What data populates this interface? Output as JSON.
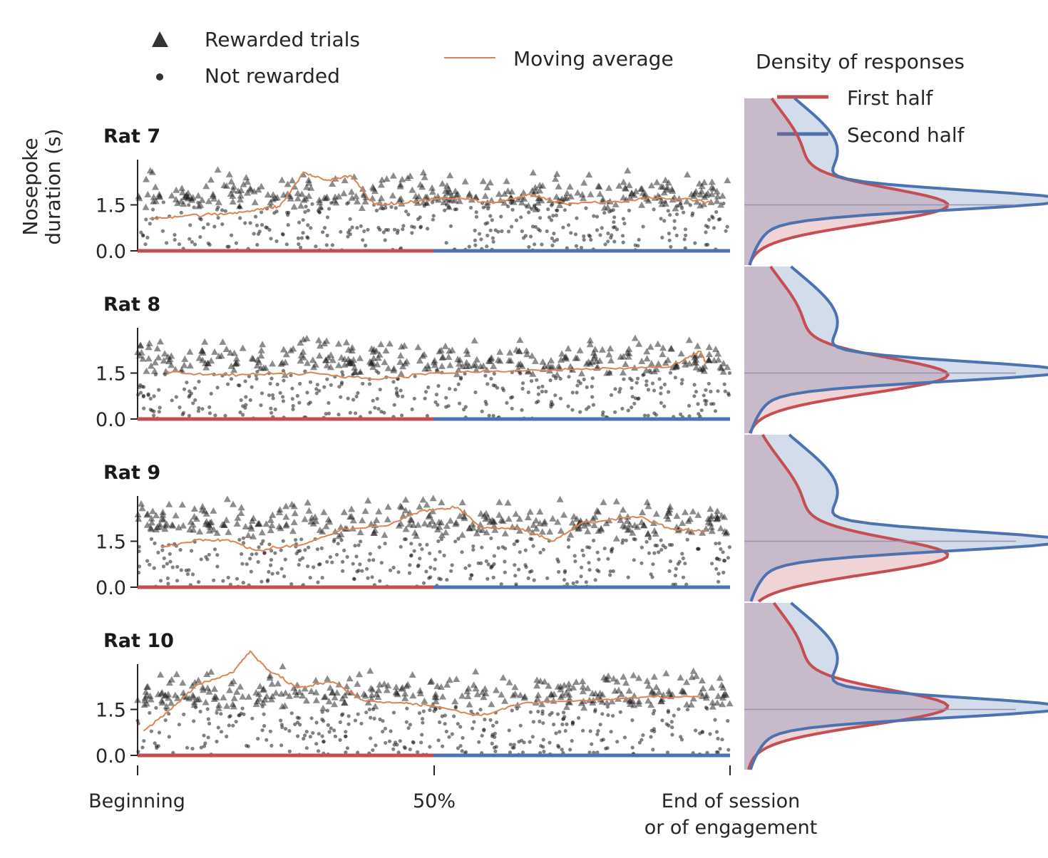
{
  "legend": {
    "rewarded": "Rewarded trials",
    "not_rewarded": "Not rewarded",
    "moving_average": "Moving average",
    "density_title": "Density of responses",
    "first_half": "First half",
    "second_half": "Second half"
  },
  "colors": {
    "points": "#1a1a1a",
    "moving_average": "#dd8452",
    "first_half": "#c44e52",
    "second_half": "#4c72b0"
  },
  "chart_data": {
    "type": "scatter",
    "ylabel": "Nosepoke\nduration (s)",
    "yticks": [
      "0.0",
      "1.5"
    ],
    "xticks": [
      "Beginning",
      "50%",
      "End of session\nor of engagement"
    ],
    "ylim": [
      0,
      3
    ],
    "xlim": [
      0,
      1
    ],
    "panels": [
      {
        "name": "Rat 7",
        "moving_average": [
          [
            0.02,
            1.05
          ],
          [
            0.08,
            1.15
          ],
          [
            0.15,
            1.2
          ],
          [
            0.2,
            1.35
          ],
          [
            0.24,
            1.45
          ],
          [
            0.28,
            2.55
          ],
          [
            0.32,
            2.3
          ],
          [
            0.36,
            2.45
          ],
          [
            0.4,
            1.5
          ],
          [
            0.45,
            1.55
          ],
          [
            0.5,
            1.7
          ],
          [
            0.55,
            1.7
          ],
          [
            0.6,
            1.55
          ],
          [
            0.66,
            1.85
          ],
          [
            0.72,
            1.55
          ],
          [
            0.8,
            1.6
          ],
          [
            0.88,
            1.75
          ],
          [
            0.97,
            1.6
          ]
        ],
        "rewarded_level": 1.6,
        "density_first_peak": 1.45,
        "density_second_peak": 1.65
      },
      {
        "name": "Rat 8",
        "moving_average": [
          [
            0.05,
            1.55
          ],
          [
            0.12,
            1.45
          ],
          [
            0.2,
            1.45
          ],
          [
            0.3,
            1.5
          ],
          [
            0.4,
            1.3
          ],
          [
            0.5,
            1.5
          ],
          [
            0.6,
            1.55
          ],
          [
            0.7,
            1.6
          ],
          [
            0.8,
            1.65
          ],
          [
            0.9,
            1.7
          ],
          [
            0.95,
            2.2
          ],
          [
            0.96,
            1.8
          ]
        ],
        "rewarded_level": 1.7,
        "density_first_peak": 1.4,
        "density_second_peak": 1.55
      },
      {
        "name": "Rat 9",
        "moving_average": [
          [
            0.04,
            1.3
          ],
          [
            0.1,
            1.55
          ],
          [
            0.15,
            1.55
          ],
          [
            0.2,
            1.2
          ],
          [
            0.28,
            1.4
          ],
          [
            0.35,
            1.9
          ],
          [
            0.42,
            2.0
          ],
          [
            0.48,
            2.5
          ],
          [
            0.54,
            2.6
          ],
          [
            0.58,
            1.95
          ],
          [
            0.65,
            1.9
          ],
          [
            0.7,
            1.5
          ],
          [
            0.75,
            2.1
          ],
          [
            0.85,
            2.3
          ],
          [
            0.9,
            1.9
          ],
          [
            0.96,
            1.85
          ]
        ],
        "rewarded_level": 1.9,
        "density_first_peak": 1.0,
        "density_second_peak": 1.5
      },
      {
        "name": "Rat 10",
        "moving_average": [
          [
            0.01,
            0.8
          ],
          [
            0.05,
            1.4
          ],
          [
            0.1,
            2.3
          ],
          [
            0.16,
            2.7
          ],
          [
            0.19,
            3.4
          ],
          [
            0.22,
            2.8
          ],
          [
            0.27,
            2.2
          ],
          [
            0.33,
            2.4
          ],
          [
            0.38,
            1.8
          ],
          [
            0.45,
            1.7
          ],
          [
            0.5,
            1.6
          ],
          [
            0.58,
            1.3
          ],
          [
            0.65,
            1.7
          ],
          [
            0.75,
            1.8
          ],
          [
            0.85,
            1.9
          ],
          [
            0.95,
            1.9
          ]
        ],
        "rewarded_level": 1.8,
        "density_first_peak": 1.55,
        "density_second_peak": 1.55
      }
    ]
  }
}
